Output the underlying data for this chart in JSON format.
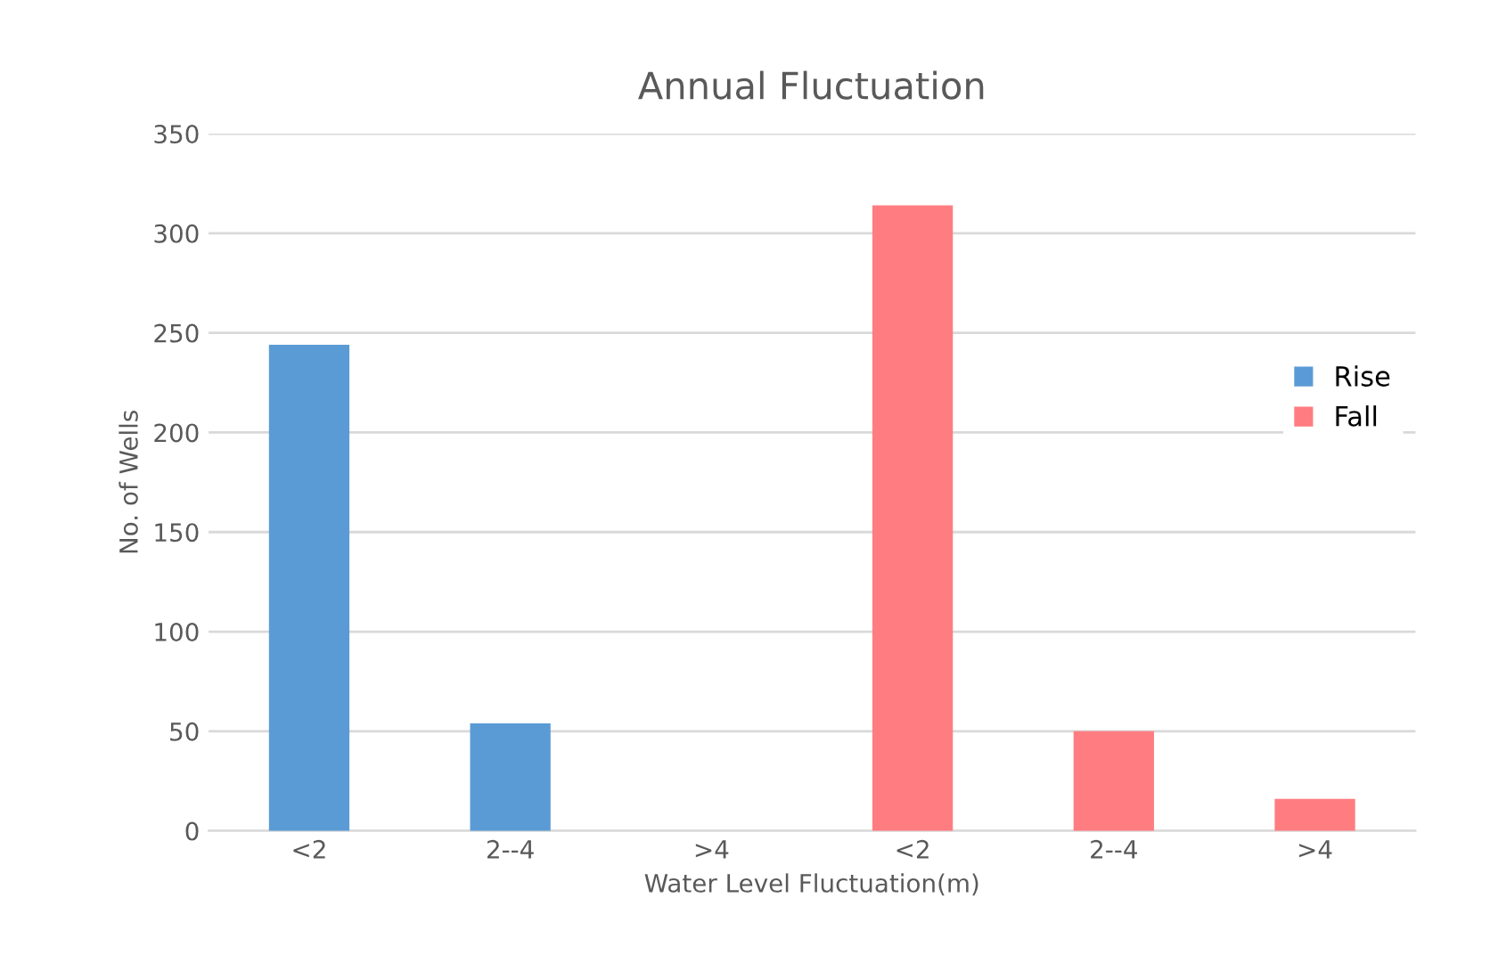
{
  "chart_data": {
    "type": "bar",
    "title": "Annual Fluctuation",
    "xlabel": "Water Level Fluctuation(m)",
    "ylabel": "No. of Wells",
    "categories": [
      "<2",
      "2--4",
      ">4",
      "<2",
      "2--4",
      ">4"
    ],
    "series": [
      {
        "name": "Rise",
        "color": "#5b9bd5",
        "values": [
          244,
          54,
          0,
          null,
          null,
          null
        ]
      },
      {
        "name": "Fall",
        "color": "#ff7c80",
        "values": [
          null,
          null,
          null,
          314,
          50,
          16
        ]
      }
    ],
    "ylim": [
      0,
      350
    ],
    "yticks": [
      0,
      50,
      100,
      150,
      200,
      250,
      300,
      350
    ],
    "grid": "y",
    "legend": "right"
  }
}
